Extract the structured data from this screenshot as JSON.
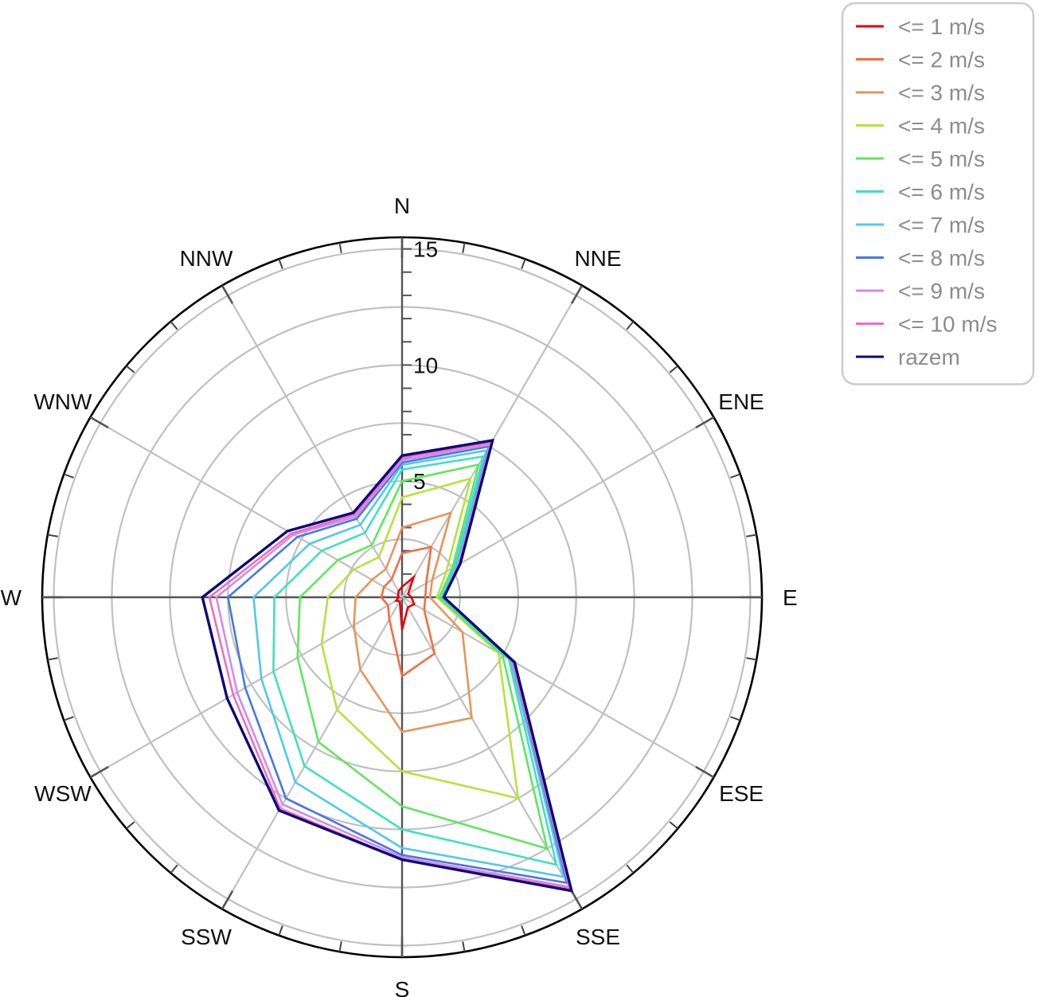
{
  "chart_data": {
    "type": "radar",
    "directions": [
      "N",
      "NNE",
      "ENE",
      "E",
      "ESE",
      "SSE",
      "S",
      "SSW",
      "WSW",
      "W",
      "WNW",
      "NNW"
    ],
    "rlim": [
      0,
      15.5
    ],
    "ring_labels": [
      "5",
      "10",
      "15"
    ],
    "grid": true,
    "legend_position": "top-right",
    "series": [
      {
        "name": "<= 1 m/s",
        "color": "#e8000b",
        "values": [
          0.45,
          1.0,
          0.3,
          0.4,
          0.6,
          0.5,
          1.4,
          0.2,
          0.3,
          0.15,
          0.2,
          0.3
        ]
      },
      {
        "name": "<= 2 m/s",
        "color": "#f46d43",
        "values": [
          1.9,
          2.5,
          1.2,
          1.0,
          1.1,
          2.8,
          3.4,
          1.1,
          0.7,
          0.9,
          0.9,
          0.9
        ]
      },
      {
        "name": "<= 3 m/s",
        "color": "#e8955a",
        "values": [
          3.0,
          4.2,
          1.5,
          1.2,
          3.0,
          6.0,
          5.8,
          3.6,
          2.4,
          2.0,
          1.5,
          1.4
        ]
      },
      {
        "name": "<= 4 m/s",
        "color": "#b7e23e",
        "values": [
          4.3,
          5.9,
          2.2,
          1.5,
          4.8,
          10.0,
          7.5,
          5.6,
          4.0,
          3.2,
          2.4,
          2.0
        ]
      },
      {
        "name": "<= 5 m/s",
        "color": "#5ee75e",
        "values": [
          5.0,
          6.6,
          2.5,
          1.6,
          5.0,
          12.5,
          9.0,
          7.2,
          5.2,
          4.4,
          3.2,
          2.6
        ]
      },
      {
        "name": "<= 6 m/s",
        "color": "#40e0c0",
        "values": [
          5.5,
          7.0,
          2.6,
          1.7,
          5.3,
          13.3,
          10.0,
          8.4,
          6.4,
          5.5,
          4.0,
          3.2
        ]
      },
      {
        "name": "<= 7 m/s",
        "color": "#4fc8ef",
        "values": [
          5.7,
          7.3,
          2.7,
          1.75,
          5.4,
          13.9,
          10.8,
          9.2,
          7.0,
          6.4,
          4.6,
          3.6
        ]
      },
      {
        "name": "<= 8 m/s",
        "color": "#4678e6",
        "values": [
          5.8,
          7.5,
          2.8,
          1.8,
          5.5,
          14.2,
          11.1,
          10.0,
          7.8,
          7.5,
          5.2,
          3.9
        ]
      },
      {
        "name": "<= 9 m/s",
        "color": "#d28be8",
        "values": [
          5.9,
          7.6,
          2.8,
          1.8,
          5.5,
          14.4,
          11.2,
          10.3,
          8.2,
          8.0,
          5.4,
          4.0
        ]
      },
      {
        "name": "<= 10 m/s",
        "color": "#f06ebe",
        "values": [
          6.0,
          7.7,
          2.85,
          1.8,
          5.5,
          14.5,
          11.3,
          10.5,
          8.4,
          8.3,
          5.5,
          4.1
        ]
      },
      {
        "name": "razem",
        "color": "#0b0b78",
        "values": [
          6.1,
          7.8,
          2.9,
          1.8,
          5.6,
          14.6,
          11.3,
          10.6,
          8.7,
          8.6,
          5.7,
          4.2
        ]
      }
    ]
  }
}
